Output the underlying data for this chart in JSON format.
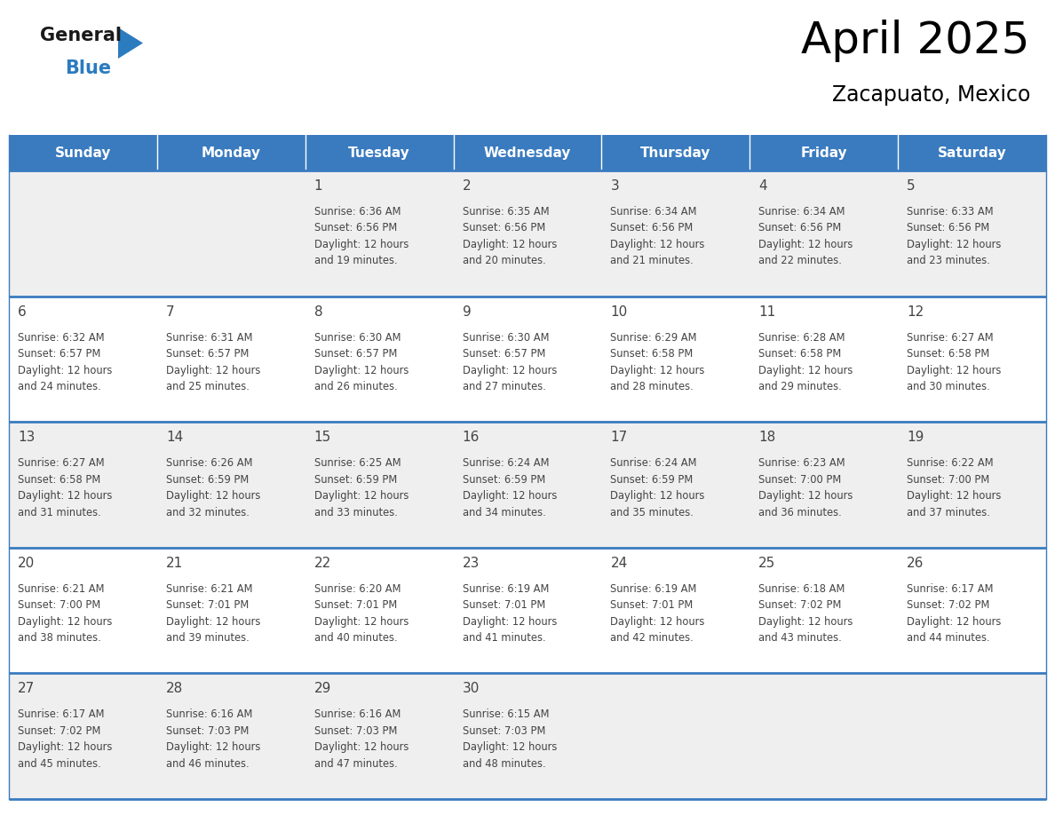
{
  "title": "April 2025",
  "subtitle": "Zacapuato, Mexico",
  "header_bg": "#3a7bbf",
  "header_text": "#ffffff",
  "day_names": [
    "Sunday",
    "Monday",
    "Tuesday",
    "Wednesday",
    "Thursday",
    "Friday",
    "Saturday"
  ],
  "row_bg_light": "#efefef",
  "row_bg_white": "#ffffff",
  "border_color": "#3a7bbf",
  "text_color": "#444444",
  "logo_black": "#1a1a1a",
  "logo_blue": "#2b7bbf",
  "days": [
    {
      "day": 1,
      "col": 2,
      "row": 0,
      "sunrise": "6:36 AM",
      "sunset": "6:56 PM",
      "daylight_min": 19
    },
    {
      "day": 2,
      "col": 3,
      "row": 0,
      "sunrise": "6:35 AM",
      "sunset": "6:56 PM",
      "daylight_min": 20
    },
    {
      "day": 3,
      "col": 4,
      "row": 0,
      "sunrise": "6:34 AM",
      "sunset": "6:56 PM",
      "daylight_min": 21
    },
    {
      "day": 4,
      "col": 5,
      "row": 0,
      "sunrise": "6:34 AM",
      "sunset": "6:56 PM",
      "daylight_min": 22
    },
    {
      "day": 5,
      "col": 6,
      "row": 0,
      "sunrise": "6:33 AM",
      "sunset": "6:56 PM",
      "daylight_min": 23
    },
    {
      "day": 6,
      "col": 0,
      "row": 1,
      "sunrise": "6:32 AM",
      "sunset": "6:57 PM",
      "daylight_min": 24
    },
    {
      "day": 7,
      "col": 1,
      "row": 1,
      "sunrise": "6:31 AM",
      "sunset": "6:57 PM",
      "daylight_min": 25
    },
    {
      "day": 8,
      "col": 2,
      "row": 1,
      "sunrise": "6:30 AM",
      "sunset": "6:57 PM",
      "daylight_min": 26
    },
    {
      "day": 9,
      "col": 3,
      "row": 1,
      "sunrise": "6:30 AM",
      "sunset": "6:57 PM",
      "daylight_min": 27
    },
    {
      "day": 10,
      "col": 4,
      "row": 1,
      "sunrise": "6:29 AM",
      "sunset": "6:58 PM",
      "daylight_min": 28
    },
    {
      "day": 11,
      "col": 5,
      "row": 1,
      "sunrise": "6:28 AM",
      "sunset": "6:58 PM",
      "daylight_min": 29
    },
    {
      "day": 12,
      "col": 6,
      "row": 1,
      "sunrise": "6:27 AM",
      "sunset": "6:58 PM",
      "daylight_min": 30
    },
    {
      "day": 13,
      "col": 0,
      "row": 2,
      "sunrise": "6:27 AM",
      "sunset": "6:58 PM",
      "daylight_min": 31
    },
    {
      "day": 14,
      "col": 1,
      "row": 2,
      "sunrise": "6:26 AM",
      "sunset": "6:59 PM",
      "daylight_min": 32
    },
    {
      "day": 15,
      "col": 2,
      "row": 2,
      "sunrise": "6:25 AM",
      "sunset": "6:59 PM",
      "daylight_min": 33
    },
    {
      "day": 16,
      "col": 3,
      "row": 2,
      "sunrise": "6:24 AM",
      "sunset": "6:59 PM",
      "daylight_min": 34
    },
    {
      "day": 17,
      "col": 4,
      "row": 2,
      "sunrise": "6:24 AM",
      "sunset": "6:59 PM",
      "daylight_min": 35
    },
    {
      "day": 18,
      "col": 5,
      "row": 2,
      "sunrise": "6:23 AM",
      "sunset": "7:00 PM",
      "daylight_min": 36
    },
    {
      "day": 19,
      "col": 6,
      "row": 2,
      "sunrise": "6:22 AM",
      "sunset": "7:00 PM",
      "daylight_min": 37
    },
    {
      "day": 20,
      "col": 0,
      "row": 3,
      "sunrise": "6:21 AM",
      "sunset": "7:00 PM",
      "daylight_min": 38
    },
    {
      "day": 21,
      "col": 1,
      "row": 3,
      "sunrise": "6:21 AM",
      "sunset": "7:01 PM",
      "daylight_min": 39
    },
    {
      "day": 22,
      "col": 2,
      "row": 3,
      "sunrise": "6:20 AM",
      "sunset": "7:01 PM",
      "daylight_min": 40
    },
    {
      "day": 23,
      "col": 3,
      "row": 3,
      "sunrise": "6:19 AM",
      "sunset": "7:01 PM",
      "daylight_min": 41
    },
    {
      "day": 24,
      "col": 4,
      "row": 3,
      "sunrise": "6:19 AM",
      "sunset": "7:01 PM",
      "daylight_min": 42
    },
    {
      "day": 25,
      "col": 5,
      "row": 3,
      "sunrise": "6:18 AM",
      "sunset": "7:02 PM",
      "daylight_min": 43
    },
    {
      "day": 26,
      "col": 6,
      "row": 3,
      "sunrise": "6:17 AM",
      "sunset": "7:02 PM",
      "daylight_min": 44
    },
    {
      "day": 27,
      "col": 0,
      "row": 4,
      "sunrise": "6:17 AM",
      "sunset": "7:02 PM",
      "daylight_min": 45
    },
    {
      "day": 28,
      "col": 1,
      "row": 4,
      "sunrise": "6:16 AM",
      "sunset": "7:03 PM",
      "daylight_min": 46
    },
    {
      "day": 29,
      "col": 2,
      "row": 4,
      "sunrise": "6:16 AM",
      "sunset": "7:03 PM",
      "daylight_min": 47
    },
    {
      "day": 30,
      "col": 3,
      "row": 4,
      "sunrise": "6:15 AM",
      "sunset": "7:03 PM",
      "daylight_min": 48
    }
  ]
}
